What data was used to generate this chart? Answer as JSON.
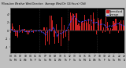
{
  "bg_color": "#c0c0c0",
  "plot_bg": "#000000",
  "grid_color": "#555555",
  "bar_color": "#cc2222",
  "line_color": "#4444ff",
  "ylim": [
    -5.5,
    5.5
  ],
  "n_bars": 96,
  "legend_bar_label": "Normalized",
  "legend_line_label": "Average",
  "seed": 42,
  "yticks": [
    -4,
    -2,
    0,
    2,
    4
  ],
  "n_xticks": 24
}
